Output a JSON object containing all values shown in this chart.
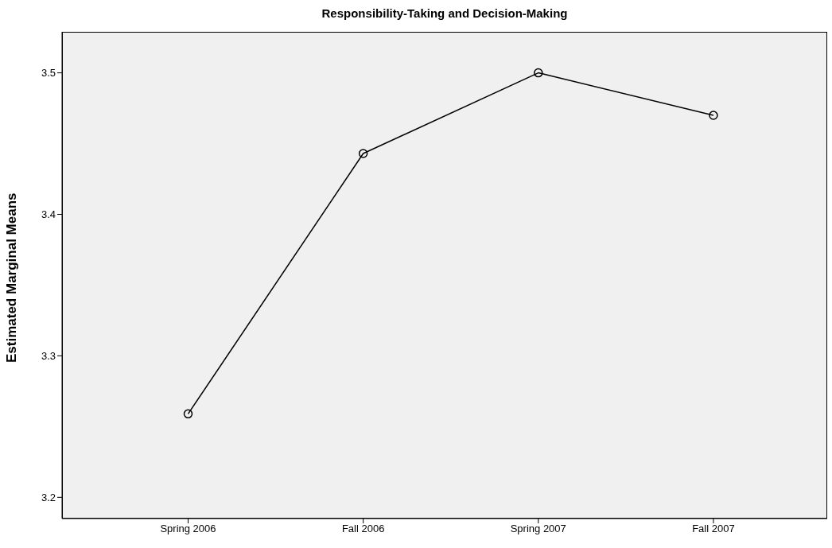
{
  "chart_data": {
    "type": "line",
    "title": "Responsibility-Taking and Decision-Making",
    "ylabel": "Estimated Marginal Means",
    "categories": [
      "Spring 2006",
      "Fall 2006",
      "Spring 2007",
      "Fall 2007"
    ],
    "series": [
      {
        "color": "#000000",
        "values": [
          3.259,
          3.443,
          3.5,
          3.47
        ]
      }
    ],
    "ylim": [
      3.185,
      3.529
    ],
    "yticks": [
      3.2,
      3.3,
      3.4,
      3.5
    ],
    "grid": false,
    "marker": "circle",
    "line_style": "solid"
  }
}
